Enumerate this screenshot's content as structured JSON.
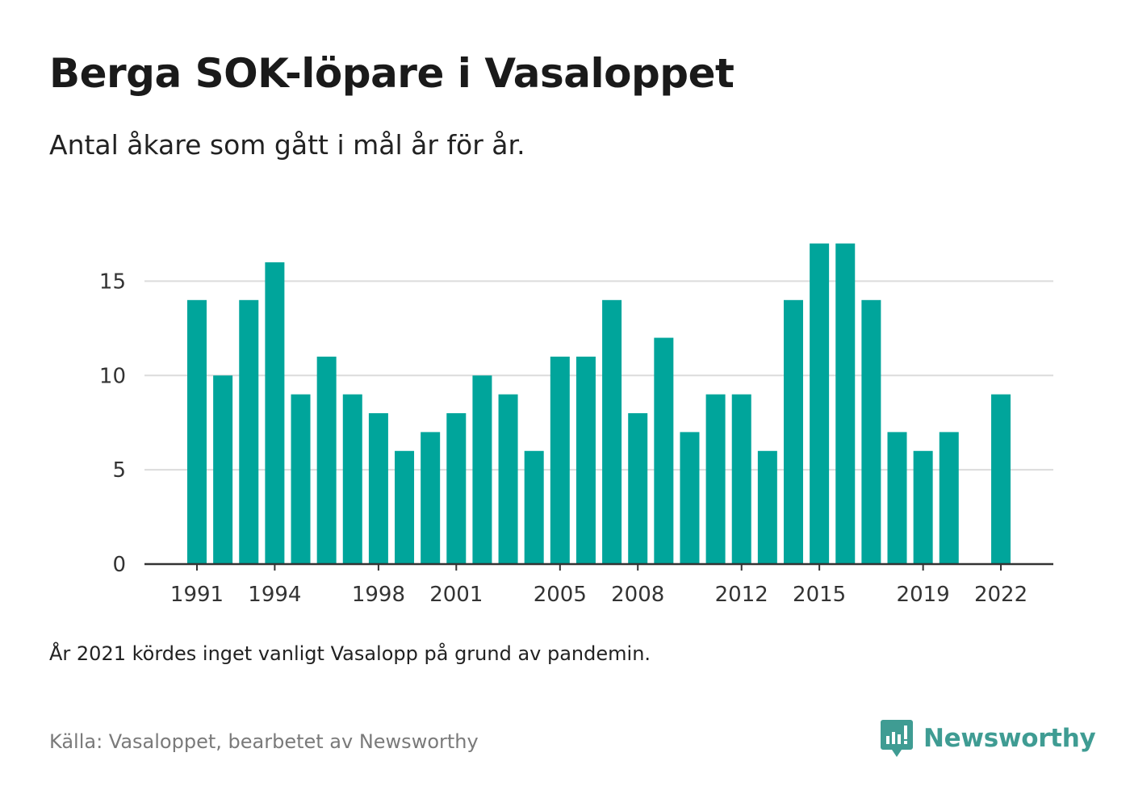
{
  "header": {
    "title": "Berga SOK-löpare i Vasaloppet",
    "subtitle": "Antal åkare som gått i mål år för år."
  },
  "footer": {
    "note": "År 2021 kördes inget vanligt Vasalopp på grund av pandemin.",
    "source": "Källa: Vasaloppet, bearbetet av Newsworthy",
    "brand": "Newsworthy"
  },
  "colors": {
    "bar": "#00a59b",
    "grid": "#dcdcdc",
    "axis": "#333333",
    "brand": "#3f9c93"
  },
  "icons": {
    "logo": "newsworthy-logo-icon"
  },
  "chart_data": {
    "type": "bar",
    "title": "Berga SOK-löpare i Vasaloppet",
    "subtitle": "Antal åkare som gått i mål år för år.",
    "xlabel": "",
    "ylabel": "",
    "x": [
      1991,
      1992,
      1993,
      1994,
      1995,
      1996,
      1997,
      1998,
      1999,
      2000,
      2001,
      2002,
      2003,
      2004,
      2005,
      2006,
      2007,
      2008,
      2009,
      2010,
      2011,
      2012,
      2013,
      2014,
      2015,
      2016,
      2017,
      2018,
      2019,
      2020,
      2021,
      2022
    ],
    "values": [
      14,
      10,
      14,
      16,
      9,
      11,
      9,
      8,
      6,
      7,
      8,
      10,
      9,
      6,
      11,
      11,
      14,
      8,
      12,
      7,
      9,
      9,
      6,
      14,
      17,
      17,
      14,
      7,
      6,
      7,
      null,
      9
    ],
    "xticks": [
      1991,
      1994,
      1998,
      2001,
      2005,
      2008,
      2012,
      2015,
      2019,
      2022
    ],
    "yticks": [
      0,
      5,
      10,
      15
    ],
    "ylim": [
      0,
      17.5
    ],
    "grid": true,
    "legend": "none"
  }
}
